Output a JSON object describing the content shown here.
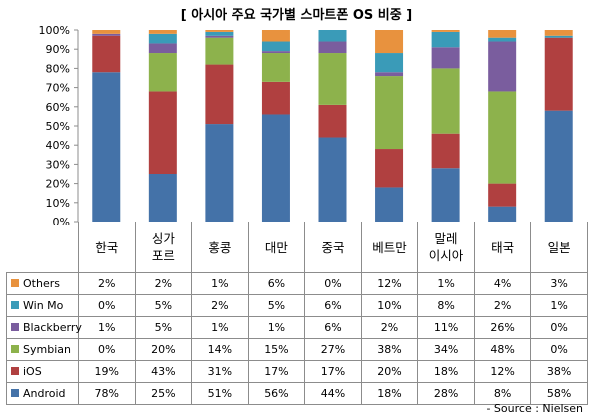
{
  "chart_data": {
    "type": "bar",
    "stacked": true,
    "title": "[ 아시아 주요 국가별 스마트폰 OS 비중 ]",
    "categories": [
      "한국",
      "싱가\n포르",
      "홍콩",
      "대만",
      "중국",
      "베트만",
      "말레\n이시아",
      "태국",
      "일본"
    ],
    "y_ticks": [
      "0%",
      "10%",
      "20%",
      "30%",
      "40%",
      "50%",
      "60%",
      "70%",
      "80%",
      "90%",
      "100%"
    ],
    "ylim": [
      0,
      100
    ],
    "grid": false,
    "series": [
      {
        "name": "Android",
        "color": "#4472a8",
        "values": [
          78,
          25,
          51,
          56,
          44,
          18,
          28,
          8,
          58
        ],
        "labels": [
          "78%",
          "25%",
          "51%",
          "56%",
          "44%",
          "18%",
          "28%",
          "8%",
          "58%"
        ]
      },
      {
        "name": "iOS",
        "color": "#b04040",
        "values": [
          19,
          43,
          31,
          17,
          17,
          20,
          18,
          12,
          38
        ],
        "labels": [
          "19%",
          "43%",
          "31%",
          "17%",
          "17%",
          "20%",
          "18%",
          "12%",
          "38%"
        ]
      },
      {
        "name": "Symbian",
        "color": "#8db24c",
        "values": [
          0,
          20,
          14,
          15,
          27,
          38,
          34,
          48,
          0
        ],
        "labels": [
          "0%",
          "20%",
          "14%",
          "15%",
          "27%",
          "38%",
          "34%",
          "48%",
          "0%"
        ]
      },
      {
        "name": "Blackberry",
        "color": "#7a5d9e",
        "values": [
          1,
          5,
          1,
          1,
          6,
          2,
          11,
          26,
          0
        ],
        "labels": [
          "1%",
          "5%",
          "1%",
          "1%",
          "6%",
          "2%",
          "11%",
          "26%",
          "0%"
        ]
      },
      {
        "name": "Win Mo",
        "color": "#3a9bb8",
        "values": [
          0,
          5,
          2,
          5,
          6,
          10,
          8,
          2,
          1
        ],
        "labels": [
          "0%",
          "5%",
          "2%",
          "5%",
          "6%",
          "10%",
          "8%",
          "2%",
          "1%"
        ]
      },
      {
        "name": "Others",
        "color": "#e8923e",
        "values": [
          2,
          2,
          1,
          6,
          0,
          12,
          1,
          4,
          3
        ],
        "labels": [
          "2%",
          "2%",
          "1%",
          "6%",
          "0%",
          "12%",
          "1%",
          "4%",
          "3%"
        ]
      }
    ],
    "table_row_order": [
      "Others",
      "Win Mo",
      "Blackberry",
      "Symbian",
      "iOS",
      "Android"
    ],
    "source": "- Source : Nielsen"
  }
}
